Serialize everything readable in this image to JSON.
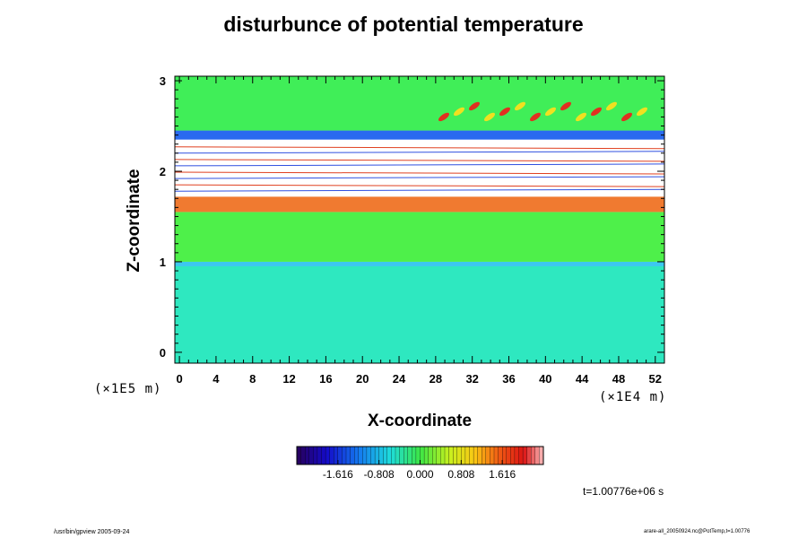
{
  "chart_data": {
    "type": "heatmap",
    "title": "disturbunce of potential temperature",
    "xlabel": "X-coordinate",
    "ylabel": "Z-coordinate",
    "x_unit": "(×1E4 m)",
    "z_unit": "(×1E5 m)",
    "x_ticks": [
      "0",
      "4",
      "8",
      "12",
      "16",
      "20",
      "24",
      "28",
      "32",
      "36",
      "40",
      "44",
      "48",
      "52"
    ],
    "z_ticks": [
      "0",
      "1",
      "2",
      "3"
    ],
    "xlim": [
      -0.5,
      53
    ],
    "zlim": [
      -0.12,
      3.05
    ],
    "colorbar": {
      "labels": [
        "-1.616",
        "-0.808",
        "0.000",
        "0.808",
        "1.616"
      ],
      "values": [
        -1.616,
        -0.808,
        0.0,
        0.808,
        1.616
      ],
      "range": [
        -2.424,
        2.424
      ],
      "segments": 60
    },
    "field_bands": [
      {
        "z_from": -0.12,
        "z_to": 0.95,
        "level": -0.55,
        "color": "#2ee8c0"
      },
      {
        "z_from": 0.95,
        "z_to": 1.0,
        "level": -0.95,
        "color": "#3cc8f0"
      },
      {
        "z_from": 1.0,
        "z_to": 1.55,
        "level": 0.05,
        "color": "#4ef04a"
      },
      {
        "z_from": 1.55,
        "z_to": 1.72,
        "level": 1.3,
        "color": "#f07a30"
      },
      {
        "z_from": 1.72,
        "z_to": 2.35,
        "level": 2.4,
        "color": "#ffffff"
      },
      {
        "z_from": 2.35,
        "z_to": 2.45,
        "level": -1.4,
        "color": "#2a6af0"
      },
      {
        "z_from": 2.45,
        "z_to": 3.05,
        "level": 0.1,
        "color": "#40ee58"
      }
    ],
    "annotation": "t=1.00776e+06 s"
  },
  "footer": {
    "left": "/usr/bin/gpview 2005-09-24",
    "right": "arare-all_20050924.nc@PotTemp,t=1.00776"
  }
}
